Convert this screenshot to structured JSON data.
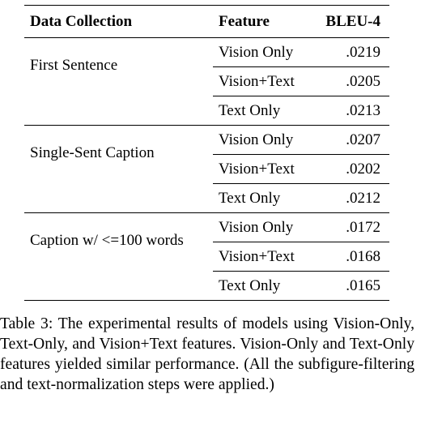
{
  "table": {
    "headers": [
      "Data Collection",
      "Feature",
      "BLEU-4"
    ],
    "groups": [
      {
        "collection": "First Sentence",
        "rows": [
          {
            "feature": "Vision Only",
            "bleu": ".0219"
          },
          {
            "feature": "Vision+Text",
            "bleu": ".0205"
          },
          {
            "feature": "Text Only",
            "bleu": ".0213"
          }
        ]
      },
      {
        "collection": "Single-Sent Caption",
        "rows": [
          {
            "feature": "Vision Only",
            "bleu": ".0207"
          },
          {
            "feature": "Vision+Text",
            "bleu": ".0202"
          },
          {
            "feature": "Text Only",
            "bleu": ".0212"
          }
        ]
      },
      {
        "collection": "Caption w/ <=100 words",
        "rows": [
          {
            "feature": "Vision Only",
            "bleu": ".0172"
          },
          {
            "feature": "Vision+Text",
            "bleu": ".0168"
          },
          {
            "feature": "Text Only",
            "bleu": ".0165"
          }
        ]
      }
    ]
  },
  "caption": {
    "text": "Table 3:  The experimental results of models using Vision-Only, Text-Only, and Vision+Text features. Vision-Only and Text-Only features yielded similar performance.  (All the subfigure-filtering and text-normalization steps were applied.)"
  }
}
